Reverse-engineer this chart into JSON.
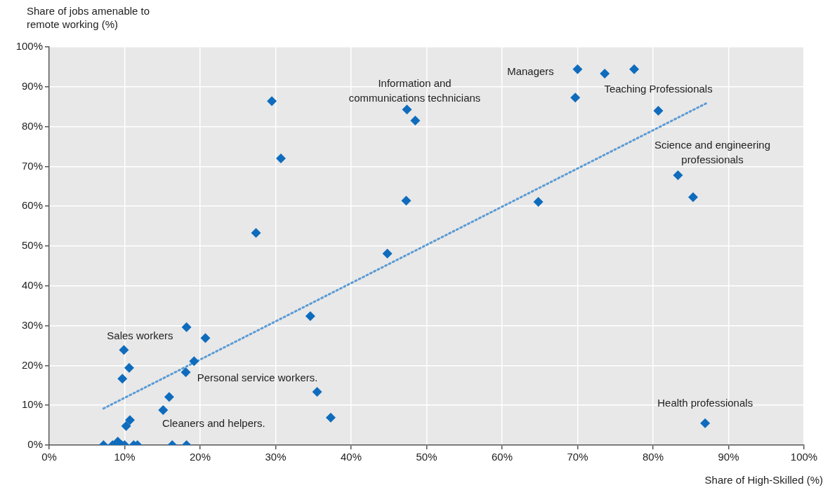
{
  "chart_data": {
    "type": "scatter",
    "xlabel": "Share of High-Skilled (%)",
    "ylabel": "Share of jobs amenable to remote working (%)",
    "xlim": [
      0,
      100
    ],
    "ylim": [
      0,
      100
    ],
    "xticks": [
      {
        "value": 0,
        "label": "0%"
      },
      {
        "value": 10,
        "label": "10%"
      },
      {
        "value": 20,
        "label": "20%"
      },
      {
        "value": 30,
        "label": "30%"
      },
      {
        "value": 40,
        "label": "40%"
      },
      {
        "value": 50,
        "label": "50%"
      },
      {
        "value": 60,
        "label": "60%"
      },
      {
        "value": 70,
        "label": "70%"
      },
      {
        "value": 80,
        "label": "80%"
      },
      {
        "value": 90,
        "label": "90%"
      },
      {
        "value": 100,
        "label": "100%"
      }
    ],
    "yticks": [
      {
        "value": 0,
        "label": "0%"
      },
      {
        "value": 10,
        "label": "10%"
      },
      {
        "value": 20,
        "label": "20%"
      },
      {
        "value": 30,
        "label": "30%"
      },
      {
        "value": 40,
        "label": "40%"
      },
      {
        "value": 50,
        "label": "50%"
      },
      {
        "value": 60,
        "label": "60%"
      },
      {
        "value": 70,
        "label": "70%"
      },
      {
        "value": 80,
        "label": "80%"
      },
      {
        "value": 90,
        "label": "90%"
      },
      {
        "value": 100,
        "label": "100%"
      }
    ],
    "grid": true,
    "legend": false,
    "marker": "diamond",
    "series": [
      {
        "color": "#0f6cbd",
        "x": [
          29.5,
          30.7,
          27.4,
          47.4,
          48.5,
          47.3,
          44.8,
          34.6,
          18.2,
          20.7,
          9.9,
          10.6,
          9.7,
          19.2,
          18.1,
          15.9,
          15.1,
          10.7,
          10.2,
          35.5,
          37.3,
          7.2,
          8.4,
          9.1,
          9.6,
          10.0,
          11.2,
          11.7,
          16.3,
          18.2,
          70.0,
          73.6,
          77.5,
          69.7,
          80.7,
          83.3,
          85.3,
          64.8,
          86.9
        ],
        "values": [
          86.4,
          72.0,
          53.3,
          84.3,
          81.5,
          61.4,
          48.1,
          32.4,
          29.6,
          26.9,
          23.9,
          19.4,
          16.7,
          21.1,
          18.3,
          12.1,
          8.8,
          6.3,
          4.8,
          13.4,
          6.9,
          0,
          0,
          0.9,
          0,
          0,
          0,
          0,
          0,
          0,
          94.4,
          93.3,
          94.4,
          87.3,
          84.0,
          67.8,
          62.3,
          61.1,
          5.5
        ]
      },
      {
        "type": "line",
        "color": "#5b9bd5",
        "line_style": "dotted",
        "marker": "none",
        "x": [
          7.2,
          87.1
        ],
        "values": [
          9.2,
          85.9
        ]
      }
    ],
    "annotations": [
      {
        "text": "Managers",
        "x": 70.0,
        "y": 94.4
      },
      {
        "text": "Information and\ncommunications technicians",
        "x": 47.4,
        "y": 84.3
      },
      {
        "text": "Teaching Professionals",
        "x": 80.7,
        "y": 84.0
      },
      {
        "text": "Science and engineering\nprofessionals",
        "x": 83.3,
        "y": 67.8
      },
      {
        "text": "Sales workers",
        "x": 9.9,
        "y": 23.9
      },
      {
        "text": "Personal service workers.",
        "x": 18.1,
        "y": 18.3
      },
      {
        "text": "Cleaners and helpers.",
        "x": 15.1,
        "y": 8.8
      },
      {
        "text": "Health professionals",
        "x": 86.9,
        "y": 5.5
      }
    ]
  }
}
